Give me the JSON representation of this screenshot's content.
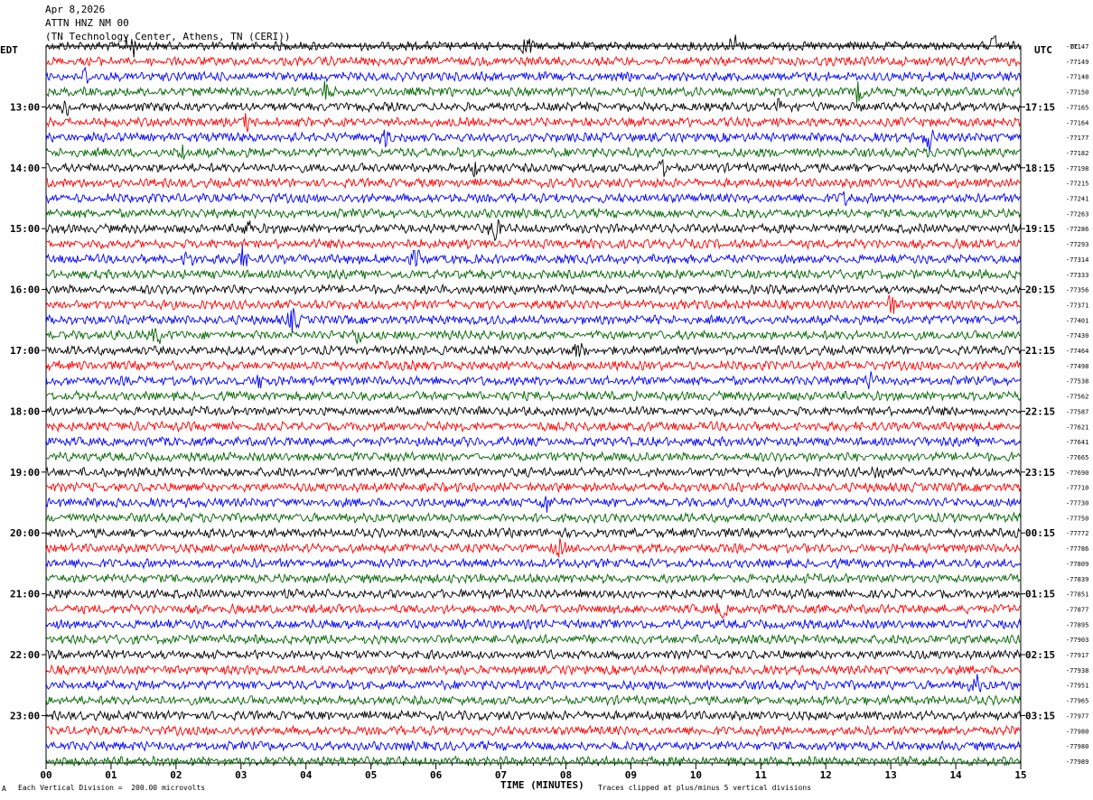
{
  "header": {
    "date": "Apr 8,2026",
    "station": "ATTN HNZ NM 00",
    "location": "(TN Technology Center, Athens, TN (CERI))"
  },
  "left_zone": "EDT",
  "right_zone": "UTC",
  "dc_label": "DC",
  "footer": {
    "mark": "A",
    "left": "Each Vertical Division =  200.00 microvolts",
    "right": "Traces clipped at plus/minus 5 vertical divisions"
  },
  "chart_data": {
    "type": "line",
    "xlabel": "TIME (MINUTES)",
    "xlim": [
      0,
      15
    ],
    "x_ticks": [
      "00",
      "01",
      "02",
      "03",
      "04",
      "05",
      "06",
      "07",
      "08",
      "09",
      "10",
      "11",
      "12",
      "13",
      "14",
      "15"
    ],
    "left_time_labels": [
      "13:00",
      "14:00",
      "15:00",
      "16:00",
      "17:00",
      "18:00",
      "19:00",
      "20:00",
      "21:00",
      "22:00",
      "23:00"
    ],
    "right_time_labels": [
      "17:15",
      "18:15",
      "19:15",
      "20:15",
      "21:15",
      "22:15",
      "23:15",
      "00:15",
      "01:15",
      "02:15",
      "03:15"
    ],
    "trace_colors": [
      "#000000",
      "#ff0000",
      "#0000ff",
      "#006600"
    ],
    "trace_dc_offsets": [
      "-77147",
      "-77149",
      "-77148",
      "-77150",
      "-77165",
      "-77164",
      "-77177",
      "-77182",
      "-77198",
      "-77215",
      "-77241",
      "-77263",
      "-77286",
      "-77293",
      "-77314",
      "-77333",
      "-77356",
      "-77371",
      "-77401",
      "-77430",
      "-77464",
      "-77498",
      "-77538",
      "-77562",
      "-77587",
      "-77621",
      "-77641",
      "-77665",
      "-77690",
      "-77710",
      "-77730",
      "-77750",
      "-77772",
      "-77786",
      "-77809",
      "-77839",
      "-77851",
      "-77877",
      "-77895",
      "-77903",
      "-77917",
      "-77938",
      "-77951",
      "-77965",
      "-77977",
      "-77980",
      "-77980",
      "-77989"
    ],
    "events": [
      {
        "trace": 0,
        "minute": 1.3,
        "amp": 2.2
      },
      {
        "trace": 0,
        "minute": 7.4,
        "amp": 1.5
      },
      {
        "trace": 0,
        "minute": 10.6,
        "amp": 1.6
      },
      {
        "trace": 0,
        "minute": 14.6,
        "amp": 1.6
      },
      {
        "trace": 2,
        "minute": 0.6,
        "amp": 1.2
      },
      {
        "trace": 2,
        "minute": 13.4,
        "amp": 1.1
      },
      {
        "trace": 3,
        "minute": 4.3,
        "amp": 1.3
      },
      {
        "trace": 3,
        "minute": 12.5,
        "amp": 1.3
      },
      {
        "trace": 4,
        "minute": 0.3,
        "amp": 1.5
      },
      {
        "trace": 4,
        "minute": 11.3,
        "amp": 1.2
      },
      {
        "trace": 5,
        "minute": 3.1,
        "amp": 1.2
      },
      {
        "trace": 6,
        "minute": 5.2,
        "amp": 1.1
      },
      {
        "trace": 6,
        "minute": 13.6,
        "amp": 1.8
      },
      {
        "trace": 7,
        "minute": 2.1,
        "amp": 1.1
      },
      {
        "trace": 8,
        "minute": 6.6,
        "amp": 1.1
      },
      {
        "trace": 8,
        "minute": 9.5,
        "amp": 1.0
      },
      {
        "trace": 10,
        "minute": 12.3,
        "amp": 1.0
      },
      {
        "trace": 12,
        "minute": 3.1,
        "amp": 1.4
      },
      {
        "trace": 12,
        "minute": 6.9,
        "amp": 1.7
      },
      {
        "trace": 14,
        "minute": 2.2,
        "amp": 1.3
      },
      {
        "trace": 14,
        "minute": 3.0,
        "amp": 1.7
      },
      {
        "trace": 14,
        "minute": 5.7,
        "amp": 1.1
      },
      {
        "trace": 17,
        "minute": 13.0,
        "amp": 1.5
      },
      {
        "trace": 18,
        "minute": 3.8,
        "amp": 1.7
      },
      {
        "trace": 19,
        "minute": 1.7,
        "amp": 1.3
      },
      {
        "trace": 19,
        "minute": 4.8,
        "amp": 1.1
      },
      {
        "trace": 20,
        "minute": 8.2,
        "amp": 1.4
      },
      {
        "trace": 22,
        "minute": 3.3,
        "amp": 1.0
      },
      {
        "trace": 22,
        "minute": 12.7,
        "amp": 1.0
      },
      {
        "trace": 28,
        "minute": 12.8,
        "amp": 1.0
      },
      {
        "trace": 30,
        "minute": 7.7,
        "amp": 1.5
      },
      {
        "trace": 33,
        "minute": 7.9,
        "amp": 1.3
      },
      {
        "trace": 37,
        "minute": 10.4,
        "amp": 1.0
      },
      {
        "trace": 42,
        "minute": 14.3,
        "amp": 1.5
      }
    ]
  }
}
